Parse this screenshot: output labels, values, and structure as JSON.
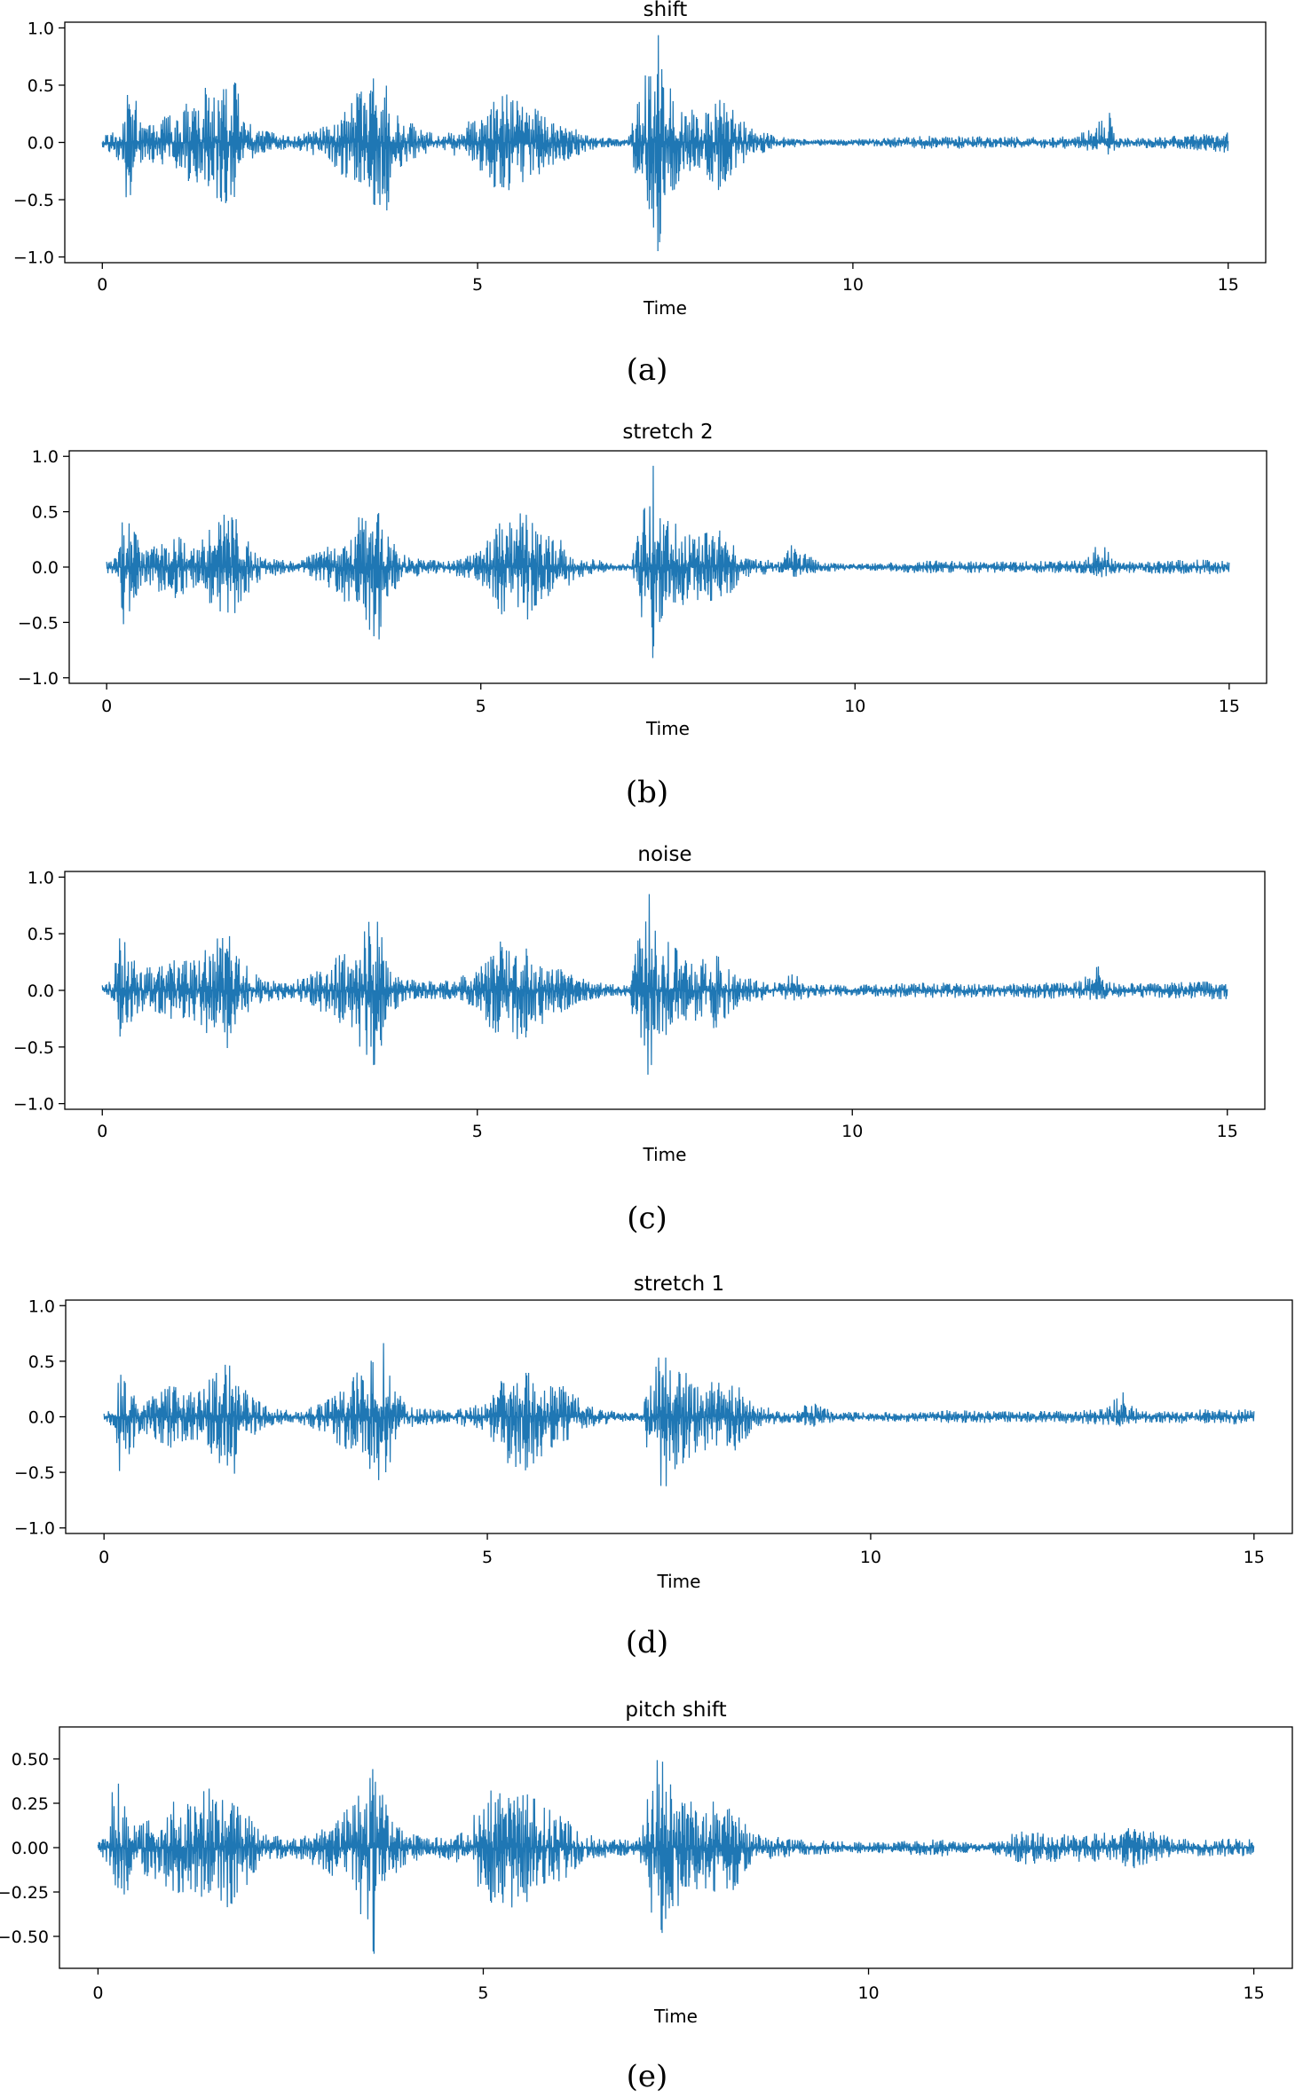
{
  "colors": {
    "series": "#1f77b4",
    "frame": "#000000",
    "background": "#ffffff"
  },
  "chart_data": [
    {
      "type": "line",
      "panel": "a",
      "caption": "(a)",
      "title": "shift",
      "xlabel": "Time",
      "ylabel": "",
      "xlim": [
        -0.5,
        15.5
      ],
      "ylim": [
        -1.05,
        1.05
      ],
      "xticks": [
        0,
        5,
        10,
        15
      ],
      "xtick_labels": [
        "0",
        "5",
        "10",
        "15"
      ],
      "yticks": [
        1.0,
        0.5,
        0.0,
        -0.5,
        -1.0
      ],
      "ytick_labels": [
        "1.0",
        "0.5",
        "0.0",
        "−0.5",
        "−1.0"
      ],
      "grid": false,
      "series": [
        {
          "color": "#1f77b4",
          "envelope": {
            "times": [
              0.0,
              0.3,
              0.32,
              0.6,
              1.0,
              1.4,
              1.8,
              1.85,
              2.2,
              2.5,
              3.0,
              3.4,
              3.8,
              3.85,
              4.2,
              4.5,
              5.0,
              5.2,
              5.6,
              6.0,
              6.6,
              7.0,
              7.4,
              7.5,
              7.65,
              8.0,
              8.2,
              8.6,
              9.0,
              9.5,
              10.0,
              11.0,
              12.0,
              13.0,
              13.45,
              13.5,
              14.0,
              15.0
            ],
            "upper": [
              0.05,
              0.2,
              0.55,
              0.15,
              0.3,
              0.5,
              0.55,
              0.2,
              0.1,
              0.05,
              0.15,
              0.45,
              0.75,
              0.3,
              0.15,
              0.05,
              0.25,
              0.45,
              0.4,
              0.2,
              0.05,
              0.03,
              1.0,
              0.5,
              0.45,
              0.25,
              0.45,
              0.15,
              0.05,
              0.03,
              0.03,
              0.06,
              0.05,
              0.06,
              0.3,
              0.05,
              0.05,
              0.09
            ],
            "lower": [
              -0.05,
              -0.2,
              -0.55,
              -0.15,
              -0.3,
              -0.5,
              -0.55,
              -0.2,
              -0.1,
              -0.05,
              -0.15,
              -0.45,
              -0.75,
              -0.3,
              -0.15,
              -0.05,
              -0.25,
              -0.45,
              -0.4,
              -0.2,
              -0.05,
              -0.03,
              -1.0,
              -0.5,
              -0.45,
              -0.25,
              -0.45,
              -0.15,
              -0.05,
              -0.03,
              -0.03,
              -0.06,
              -0.05,
              -0.06,
              -0.15,
              -0.05,
              -0.05,
              -0.09
            ]
          }
        }
      ]
    },
    {
      "type": "line",
      "panel": "b",
      "caption": "(b)",
      "title": "stretch 2",
      "xlabel": "Time",
      "ylabel": "",
      "xlim": [
        -0.5,
        15.5
      ],
      "ylim": [
        -1.05,
        1.05
      ],
      "xticks": [
        0,
        5,
        10,
        15
      ],
      "xtick_labels": [
        "0",
        "5",
        "10",
        "15"
      ],
      "yticks": [
        1.0,
        0.5,
        0.0,
        -0.5,
        -1.0
      ],
      "ytick_labels": [
        "1.0",
        "0.5",
        "0.0",
        "−0.5",
        "−1.0"
      ],
      "grid": false,
      "series": [
        {
          "color": "#1f77b4",
          "envelope": {
            "times": [
              0.0,
              0.15,
              0.2,
              0.5,
              0.9,
              1.2,
              1.5,
              1.75,
              1.8,
              2.1,
              2.5,
              2.9,
              3.3,
              3.7,
              3.75,
              4.0,
              4.5,
              5.0,
              5.3,
              5.6,
              5.8,
              6.0,
              6.3,
              6.7,
              7.0,
              7.3,
              7.35,
              7.6,
              7.8,
              8.2,
              8.5,
              9.0,
              9.2,
              9.5,
              10.0,
              11.0,
              12.0,
              13.0,
              13.3,
              13.5,
              14.5,
              15.0
            ],
            "upper": [
              0.05,
              0.1,
              0.55,
              0.15,
              0.3,
              0.2,
              0.45,
              0.55,
              0.3,
              0.1,
              0.05,
              0.15,
              0.4,
              0.75,
              0.3,
              0.1,
              0.05,
              0.15,
              0.45,
              0.5,
              0.3,
              0.3,
              0.1,
              0.05,
              0.03,
              1.0,
              0.55,
              0.4,
              0.3,
              0.35,
              0.1,
              0.05,
              0.25,
              0.05,
              0.03,
              0.06,
              0.05,
              0.06,
              0.25,
              0.05,
              0.07,
              0.06
            ],
            "lower": [
              -0.05,
              -0.1,
              -0.55,
              -0.15,
              -0.3,
              -0.2,
              -0.45,
              -0.55,
              -0.3,
              -0.1,
              -0.05,
              -0.15,
              -0.4,
              -0.75,
              -0.3,
              -0.1,
              -0.05,
              -0.15,
              -0.45,
              -0.5,
              -0.3,
              -0.3,
              -0.1,
              -0.05,
              -0.03,
              -1.0,
              -0.55,
              -0.4,
              -0.3,
              -0.35,
              -0.1,
              -0.05,
              -0.1,
              -0.05,
              -0.03,
              -0.06,
              -0.05,
              -0.06,
              -0.1,
              -0.05,
              -0.07,
              -0.06
            ]
          }
        }
      ]
    },
    {
      "type": "line",
      "panel": "c",
      "caption": "(c)",
      "title": "noise",
      "xlabel": "Time",
      "ylabel": "",
      "xlim": [
        -0.5,
        15.5
      ],
      "ylim": [
        -1.05,
        1.05
      ],
      "xticks": [
        0,
        5,
        10,
        15
      ],
      "xtick_labels": [
        "0",
        "5",
        "10",
        "15"
      ],
      "yticks": [
        1.0,
        0.5,
        0.0,
        -0.5,
        -1.0
      ],
      "ytick_labels": [
        "1.0",
        "0.5",
        "0.0",
        "−0.5",
        "−1.0"
      ],
      "grid": false,
      "series": [
        {
          "color": "#1f77b4",
          "envelope": {
            "times": [
              0.0,
              0.15,
              0.2,
              0.5,
              0.9,
              1.2,
              1.5,
              1.75,
              1.8,
              2.1,
              2.5,
              2.9,
              3.3,
              3.7,
              3.75,
              4.0,
              4.5,
              5.0,
              5.3,
              5.6,
              5.8,
              6.0,
              6.3,
              6.7,
              7.0,
              7.3,
              7.35,
              7.6,
              7.8,
              8.2,
              8.5,
              9.0,
              9.2,
              9.5,
              10.0,
              11.0,
              12.0,
              13.0,
              13.3,
              13.5,
              14.5,
              15.0
            ],
            "upper": [
              0.06,
              0.1,
              0.55,
              0.18,
              0.3,
              0.25,
              0.45,
              0.55,
              0.3,
              0.12,
              0.07,
              0.18,
              0.4,
              0.75,
              0.3,
              0.12,
              0.07,
              0.18,
              0.45,
              0.5,
              0.3,
              0.3,
              0.12,
              0.06,
              0.05,
              1.0,
              0.55,
              0.4,
              0.3,
              0.35,
              0.12,
              0.07,
              0.17,
              0.06,
              0.05,
              0.07,
              0.06,
              0.08,
              0.28,
              0.06,
              0.08,
              0.08
            ],
            "lower": [
              -0.06,
              -0.1,
              -0.55,
              -0.18,
              -0.3,
              -0.25,
              -0.45,
              -0.55,
              -0.3,
              -0.12,
              -0.07,
              -0.18,
              -0.4,
              -0.75,
              -0.3,
              -0.12,
              -0.07,
              -0.18,
              -0.45,
              -0.5,
              -0.3,
              -0.3,
              -0.12,
              -0.06,
              -0.05,
              -1.0,
              -0.55,
              -0.4,
              -0.3,
              -0.35,
              -0.12,
              -0.07,
              -0.1,
              -0.06,
              -0.05,
              -0.07,
              -0.06,
              -0.08,
              -0.1,
              -0.06,
              -0.08,
              -0.08
            ]
          }
        }
      ]
    },
    {
      "type": "line",
      "panel": "d",
      "caption": "(d)",
      "title": "stretch 1",
      "xlabel": "Time",
      "ylabel": "",
      "xlim": [
        -0.5,
        15.5
      ],
      "ylim": [
        -1.05,
        1.05
      ],
      "xticks": [
        0,
        5,
        10,
        15
      ],
      "xtick_labels": [
        "0",
        "5",
        "10",
        "15"
      ],
      "yticks": [
        1.0,
        0.5,
        0.0,
        -0.5,
        -1.0
      ],
      "ytick_labels": [
        "1.0",
        "0.5",
        "0.0",
        "−0.5",
        "−1.0"
      ],
      "grid": false,
      "series": [
        {
          "color": "#1f77b4",
          "envelope": {
            "times": [
              0.0,
              0.15,
              0.2,
              0.5,
              0.9,
              1.2,
              1.5,
              1.75,
              1.8,
              2.1,
              2.5,
              2.9,
              3.3,
              3.7,
              3.75,
              4.0,
              4.5,
              5.0,
              5.3,
              5.6,
              5.8,
              6.0,
              6.3,
              6.7,
              7.0,
              7.3,
              7.35,
              7.6,
              7.8,
              8.2,
              8.5,
              9.0,
              9.2,
              9.5,
              10.0,
              11.0,
              12.0,
              13.0,
              13.3,
              13.5,
              14.5,
              15.0
            ],
            "upper": [
              0.05,
              0.1,
              0.55,
              0.15,
              0.3,
              0.2,
              0.45,
              0.55,
              0.3,
              0.1,
              0.05,
              0.15,
              0.4,
              0.75,
              0.3,
              0.1,
              0.05,
              0.15,
              0.45,
              0.5,
              0.3,
              0.3,
              0.1,
              0.05,
              0.03,
              1.0,
              0.55,
              0.4,
              0.3,
              0.35,
              0.1,
              0.05,
              0.15,
              0.05,
              0.04,
              0.06,
              0.05,
              0.07,
              0.25,
              0.05,
              0.07,
              0.07
            ],
            "lower": [
              -0.05,
              -0.1,
              -0.55,
              -0.15,
              -0.3,
              -0.2,
              -0.45,
              -0.55,
              -0.3,
              -0.1,
              -0.05,
              -0.15,
              -0.4,
              -0.75,
              -0.3,
              -0.1,
              -0.05,
              -0.15,
              -0.45,
              -0.5,
              -0.3,
              -0.3,
              -0.1,
              -0.05,
              -0.03,
              -1.0,
              -0.55,
              -0.4,
              -0.3,
              -0.35,
              -0.1,
              -0.05,
              -0.1,
              -0.05,
              -0.04,
              -0.06,
              -0.05,
              -0.07,
              -0.1,
              -0.05,
              -0.07,
              -0.07
            ]
          }
        }
      ]
    },
    {
      "type": "line",
      "panel": "e",
      "caption": "(e)",
      "title": "pitch shift",
      "xlabel": "Time",
      "ylabel": "",
      "xlim": [
        -0.5,
        15.5
      ],
      "ylim": [
        -0.68,
        0.68
      ],
      "xticks": [
        0,
        5,
        10,
        15
      ],
      "xtick_labels": [
        "0",
        "5",
        "10",
        "15"
      ],
      "yticks": [
        0.5,
        0.25,
        0.0,
        -0.25,
        -0.5
      ],
      "ytick_labels": [
        "0.50",
        "0.25",
        "0.00",
        "−0.25",
        "−0.50"
      ],
      "grid": false,
      "series": [
        {
          "color": "#1f77b4",
          "envelope": {
            "times": [
              0.0,
              0.15,
              0.2,
              0.5,
              0.9,
              1.2,
              1.5,
              1.8,
              2.1,
              2.5,
              2.9,
              3.3,
              3.6,
              3.65,
              3.9,
              4.3,
              4.8,
              5.0,
              5.3,
              5.6,
              5.8,
              6.0,
              6.3,
              6.7,
              7.0,
              7.3,
              7.35,
              7.6,
              7.8,
              8.2,
              8.5,
              9.0,
              9.5,
              10.0,
              11.0,
              11.5,
              12.0,
              13.0,
              13.5,
              14.0,
              15.0
            ],
            "upper": [
              0.04,
              0.1,
              0.45,
              0.12,
              0.25,
              0.3,
              0.35,
              0.35,
              0.1,
              0.05,
              0.12,
              0.25,
              0.62,
              0.35,
              0.12,
              0.05,
              0.1,
              0.32,
              0.38,
              0.3,
              0.25,
              0.2,
              0.08,
              0.05,
              0.04,
              0.58,
              0.45,
              0.3,
              0.25,
              0.3,
              0.08,
              0.05,
              0.04,
              0.03,
              0.05,
              0.02,
              0.1,
              0.08,
              0.12,
              0.05,
              0.05
            ],
            "lower": [
              -0.04,
              -0.1,
              -0.45,
              -0.12,
              -0.25,
              -0.3,
              -0.35,
              -0.35,
              -0.1,
              -0.05,
              -0.12,
              -0.25,
              -0.62,
              -0.35,
              -0.12,
              -0.05,
              -0.1,
              -0.32,
              -0.38,
              -0.3,
              -0.25,
              -0.2,
              -0.08,
              -0.05,
              -0.04,
              -0.58,
              -0.45,
              -0.3,
              -0.25,
              -0.3,
              -0.08,
              -0.05,
              -0.04,
              -0.03,
              -0.05,
              -0.02,
              -0.1,
              -0.08,
              -0.12,
              -0.05,
              -0.05
            ]
          }
        }
      ]
    }
  ]
}
